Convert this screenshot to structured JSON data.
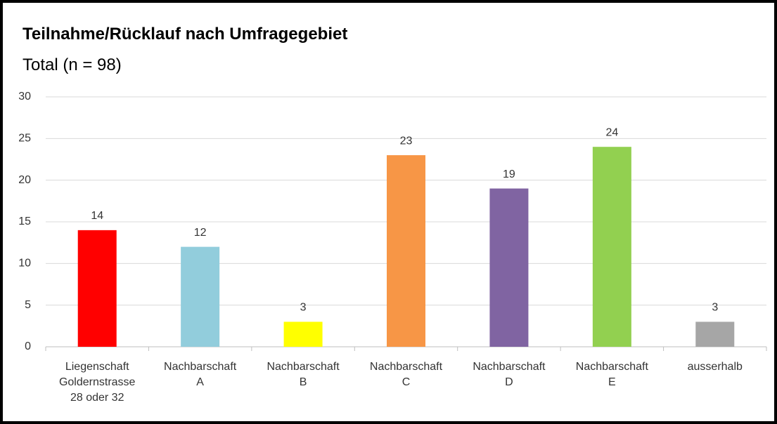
{
  "chart_data": {
    "type": "bar",
    "title": "Teilnahme/Rücklauf nach Umfragegebiet",
    "subtitle": "Total (n = 98)",
    "categories": [
      "Liegenschaft\nGoldernstrasse\n28 oder 32",
      "Nachbarschaft\nA",
      "Nachbarschaft\nB",
      "Nachbarschaft\nC",
      "Nachbarschaft\nD",
      "Nachbarschaft\nE",
      "ausserhalb"
    ],
    "values": [
      14,
      12,
      3,
      23,
      19,
      24,
      3
    ],
    "colors": [
      "#ff0000",
      "#92cddc",
      "#ffff00",
      "#f79646",
      "#8064a2",
      "#92d050",
      "#a6a6a6"
    ],
    "ylim": [
      0,
      30
    ],
    "yticks": [
      0,
      5,
      10,
      15,
      20,
      25,
      30
    ],
    "grid": true
  }
}
